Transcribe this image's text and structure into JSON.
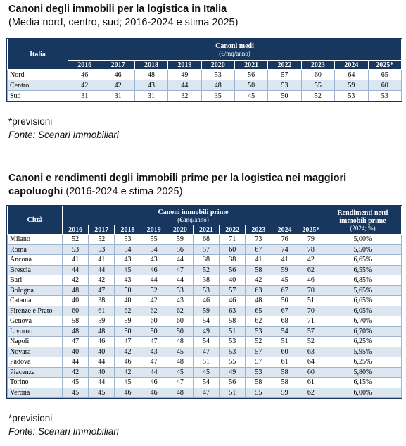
{
  "table1": {
    "title": "Canoni degli immobili per la logistica in Italia",
    "subtitle": "(Media nord, centro, sud; 2016-2024 e stima 2025)",
    "header": {
      "first": "Italia",
      "group": "Canoni medi",
      "unit": "(€/mq/anno)",
      "years": [
        "2016",
        "2017",
        "2018",
        "2019",
        "2020",
        "2021",
        "2022",
        "2023",
        "2024",
        "2025*"
      ]
    },
    "rows": [
      [
        "Nord",
        46,
        46,
        48,
        49,
        53,
        56,
        57,
        60,
        64,
        65
      ],
      [
        "Centro",
        42,
        42,
        43,
        44,
        48,
        50,
        53,
        55,
        59,
        60
      ],
      [
        "Sud",
        31,
        31,
        31,
        32,
        35,
        45,
        50,
        52,
        53,
        53
      ]
    ],
    "note": "*previsioni",
    "source": "Fonte: Scenari Immobiliari"
  },
  "table2": {
    "title": "Canoni e rendimenti degli immobili prime per la logistica nei maggiori capoluoghi",
    "subtitle": "(2016-2024 e stima 2025)",
    "header": {
      "first": "Città",
      "group": "Canoni immobili prime",
      "unit": "(€/mq/anno)",
      "years": [
        "2016",
        "2017",
        "2018",
        "2019",
        "2020",
        "2021",
        "2022",
        "2023",
        "2024",
        "2025*"
      ],
      "last": "Rendimenti netti immobili prime",
      "last_unit": "(2024; %)"
    },
    "rows": [
      [
        "Milano",
        52,
        52,
        53,
        55,
        59,
        68,
        71,
        73,
        76,
        79,
        "5,00%"
      ],
      [
        "Roma",
        53,
        53,
        54,
        54,
        56,
        57,
        60,
        67,
        74,
        78,
        "5,50%"
      ],
      [
        "Ancona",
        41,
        41,
        43,
        43,
        44,
        38,
        38,
        41,
        41,
        42,
        "6,65%"
      ],
      [
        "Brescia",
        44,
        44,
        45,
        46,
        47,
        52,
        56,
        58,
        59,
        62,
        "6,55%"
      ],
      [
        "Bari",
        42,
        42,
        43,
        44,
        44,
        38,
        40,
        42,
        45,
        46,
        "6,85%"
      ],
      [
        "Bologna",
        48,
        47,
        50,
        52,
        53,
        53,
        57,
        63,
        67,
        70,
        "5,65%"
      ],
      [
        "Catania",
        40,
        38,
        40,
        42,
        43,
        46,
        46,
        48,
        50,
        51,
        "6,65%"
      ],
      [
        "Firenze e Prato",
        60,
        61,
        62,
        62,
        62,
        59,
        63,
        65,
        67,
        70,
        "6,05%"
      ],
      [
        "Genova",
        58,
        59,
        59,
        60,
        60,
        54,
        58,
        62,
        68,
        71,
        "6,70%"
      ],
      [
        "Livorno",
        48,
        48,
        50,
        50,
        50,
        49,
        51,
        53,
        54,
        57,
        "6,70%"
      ],
      [
        "Napoli",
        47,
        46,
        47,
        47,
        48,
        54,
        53,
        52,
        51,
        52,
        "6,25%"
      ],
      [
        "Novara",
        40,
        40,
        42,
        43,
        45,
        47,
        53,
        57,
        60,
        63,
        "5,95%"
      ],
      [
        "Padova",
        44,
        44,
        46,
        47,
        48,
        51,
        55,
        57,
        61,
        64,
        "6,25%"
      ],
      [
        "Piacenza",
        42,
        40,
        42,
        44,
        45,
        45,
        49,
        53,
        58,
        60,
        "5,80%"
      ],
      [
        "Torino",
        45,
        44,
        45,
        46,
        47,
        54,
        56,
        58,
        58,
        61,
        "6,15%"
      ],
      [
        "Verona",
        45,
        45,
        46,
        46,
        48,
        47,
        51,
        55,
        59,
        62,
        "6,00%"
      ]
    ],
    "note": "*previsioni",
    "source": "Fonte: Scenari Immobiliari"
  }
}
